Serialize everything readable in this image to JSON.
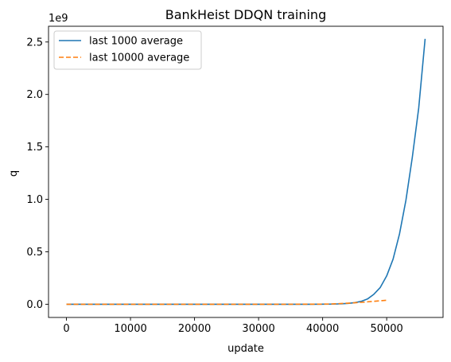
{
  "chart_data": {
    "type": "line",
    "title": "BankHeist DDQN training",
    "xlabel": "update",
    "ylabel": "q",
    "y_offset_text": "1e9",
    "xlim": [
      -2800,
      58800
    ],
    "ylim": [
      -126000000.0,
      2650000000.0
    ],
    "x_ticks": [
      0,
      10000,
      20000,
      30000,
      40000,
      50000
    ],
    "x_tick_labels": [
      "0",
      "10000",
      "20000",
      "30000",
      "40000",
      "50000"
    ],
    "y_ticks": [
      0.0,
      500000000.0,
      1000000000.0,
      1500000000.0,
      2000000000.0,
      2500000000.0
    ],
    "y_tick_labels": [
      "0.0",
      "0.5",
      "1.0",
      "1.5",
      "2.0",
      "2.5"
    ],
    "grid": false,
    "legend_placement": "top-left",
    "series": [
      {
        "name": "last 1000 average",
        "color": "#1f77b4",
        "style": "solid",
        "x": [
          0,
          2000,
          4000,
          6000,
          8000,
          10000,
          12000,
          14000,
          16000,
          18000,
          20000,
          22000,
          24000,
          26000,
          28000,
          30000,
          32000,
          34000,
          36000,
          38000,
          40000,
          41000,
          42000,
          43000,
          44000,
          45000,
          46000,
          47000,
          48000,
          49000,
          50000,
          51000,
          52000,
          53000,
          54000,
          55000,
          56000
        ],
        "values": [
          0,
          0,
          0,
          0,
          0,
          0,
          0,
          0,
          0,
          0,
          0,
          0,
          0,
          0,
          0,
          0,
          0,
          0,
          0,
          0,
          500000,
          1000000,
          2000000,
          4000000,
          8000000,
          15000000,
          27000000,
          50000000,
          95000000,
          160000000,
          270000000,
          430000000,
          670000000,
          990000000,
          1400000000,
          1870000000,
          2530000000
        ]
      },
      {
        "name": "last 10000 average",
        "color": "#ff7f0e",
        "style": "dashed",
        "x": [
          0,
          5000,
          10000,
          15000,
          20000,
          25000,
          30000,
          35000,
          40000,
          41000,
          42000,
          43000,
          44000,
          45000,
          46000,
          47000,
          48000,
          49000,
          50000
        ],
        "values": [
          0,
          0,
          0,
          0,
          0,
          0,
          0,
          0,
          1000000,
          2000000,
          4000000,
          7000000,
          10000000,
          14000000,
          18000000,
          23000000,
          28000000,
          33000000,
          38000000
        ]
      }
    ]
  }
}
